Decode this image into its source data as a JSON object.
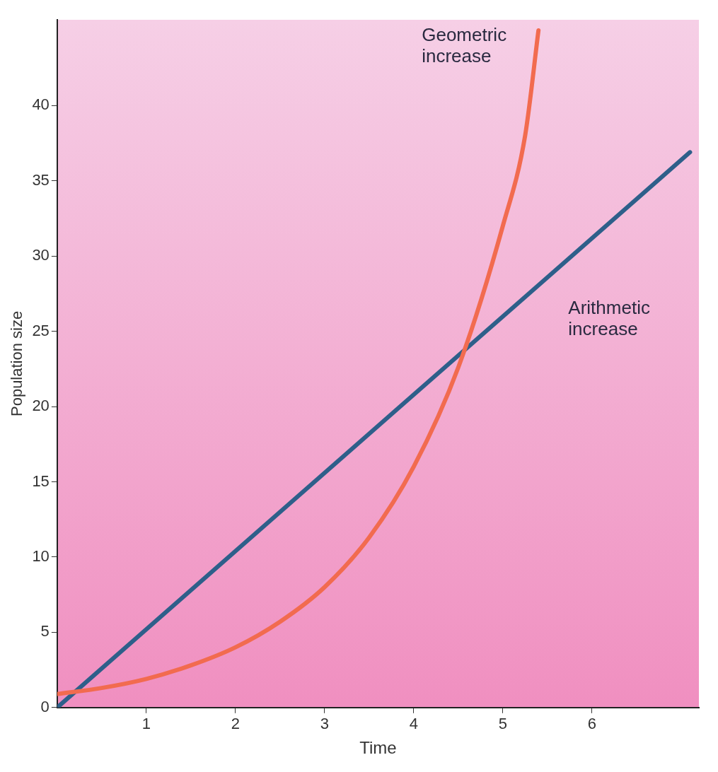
{
  "chart_data": {
    "type": "line",
    "xlabel": "Time",
    "ylabel": "Population size",
    "xlim": [
      0,
      7.2
    ],
    "ylim": [
      0,
      45.7
    ],
    "xticks": [
      1,
      2,
      3,
      4,
      5,
      6
    ],
    "yticks": [
      0,
      5,
      10,
      15,
      20,
      25,
      30,
      35,
      40
    ],
    "grid": false,
    "legend": false,
    "marker": "none",
    "line_style": "solid",
    "series": [
      {
        "name": "Geometric increase",
        "color": "#f26b4f",
        "x": [
          0,
          0.5,
          1,
          1.5,
          2,
          2.5,
          3,
          3.5,
          4,
          4.5,
          5,
          5.25,
          5.4
        ],
        "values": [
          0.9,
          1.3,
          1.9,
          2.8,
          4,
          5.7,
          8,
          11.3,
          16,
          22.6,
          32,
          38,
          45
        ]
      },
      {
        "name": "Arithmetic increase",
        "color": "#2e5f8a",
        "x": [
          0,
          7.1
        ],
        "values": [
          0,
          36.9
        ]
      }
    ]
  }
}
